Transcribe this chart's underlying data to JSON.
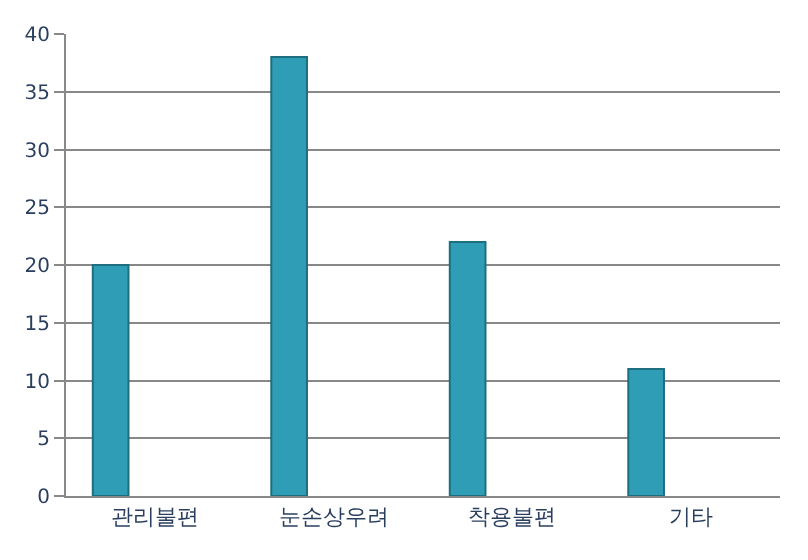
{
  "chart_data": {
    "type": "bar",
    "categories": [
      "관리불편",
      "눈손상우려",
      "착용불편",
      "기타"
    ],
    "values": [
      20,
      38,
      22,
      11
    ],
    "color": "#2f9db5",
    "ylim": [
      0,
      40
    ],
    "yticks": [
      0,
      5,
      10,
      15,
      20,
      25,
      30,
      35,
      40
    ],
    "grid": "y",
    "legend": false
  }
}
